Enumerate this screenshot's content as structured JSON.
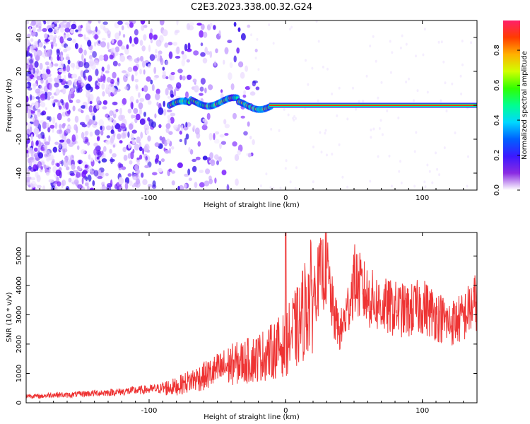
{
  "page_title": "C2E3.2023.338.00.32.G24",
  "chart_data": [
    {
      "type": "heatmap",
      "title": "C2E3.2023.338.00.32.G24",
      "xlabel": "Height of straight line (km)",
      "ylabel": "Frequency (Hz)",
      "xlim": [
        -190,
        140
      ],
      "ylim": [
        -50,
        50
      ],
      "xticks": [
        -100,
        0,
        100
      ],
      "yticks": [
        -40,
        -20,
        0,
        20,
        40
      ],
      "colorbar": {
        "label": "Normalized spectral amplitude",
        "range": [
          0,
          0.97
        ],
        "ticks": [
          0.0,
          0.2,
          0.4,
          0.6,
          0.8
        ],
        "colormap": [
          "#ffffff",
          "#e9d8ff",
          "#b98cff",
          "#7a1cff",
          "#2a10e6",
          "#0050ff",
          "#00c8ff",
          "#00ff9a",
          "#3cff00",
          "#d8ff00",
          "#ffb400",
          "#ff3c00",
          "#ff1f6a"
        ]
      },
      "features": {
        "noise_region_x": [
          -190,
          -30
        ],
        "carrier_line": {
          "frequency": 0,
          "x_start": -80,
          "x_end": 140,
          "amplitude": 0.9
        },
        "wavy_segment_x": [
          -85,
          -10
        ]
      }
    },
    {
      "type": "line",
      "xlabel": "Height of straight line (km)",
      "ylabel": "SNR (10 * v/v)",
      "xlim": [
        -190,
        140
      ],
      "ylim": [
        0,
        5800
      ],
      "xticks": [
        -100,
        0,
        100
      ],
      "yticks": [
        0,
        1000,
        2000,
        3000,
        4000,
        5000
      ],
      "color": "#ee3333",
      "series": [
        {
          "x": [
            -190,
            -180,
            -170,
            -160,
            -150,
            -140,
            -130,
            -120,
            -110,
            -100,
            -90,
            -80,
            -70,
            -60,
            -50,
            -40,
            -30,
            -20,
            -10,
            -5,
            0,
            5,
            10,
            15,
            20,
            25,
            30,
            35,
            40,
            45,
            50,
            55,
            60,
            70,
            80,
            90,
            100,
            110,
            120,
            130,
            140
          ],
          "values": [
            250,
            220,
            280,
            260,
            300,
            330,
            350,
            380,
            420,
            450,
            500,
            550,
            750,
            900,
            1100,
            1300,
            1400,
            1550,
            1750,
            1900,
            2000,
            2400,
            2650,
            3400,
            3700,
            4300,
            4600,
            3000,
            2400,
            3100,
            4200,
            3900,
            3600,
            3300,
            3200,
            3100,
            3300,
            3000,
            2700,
            2900,
            3500
          ]
        }
      ]
    }
  ]
}
